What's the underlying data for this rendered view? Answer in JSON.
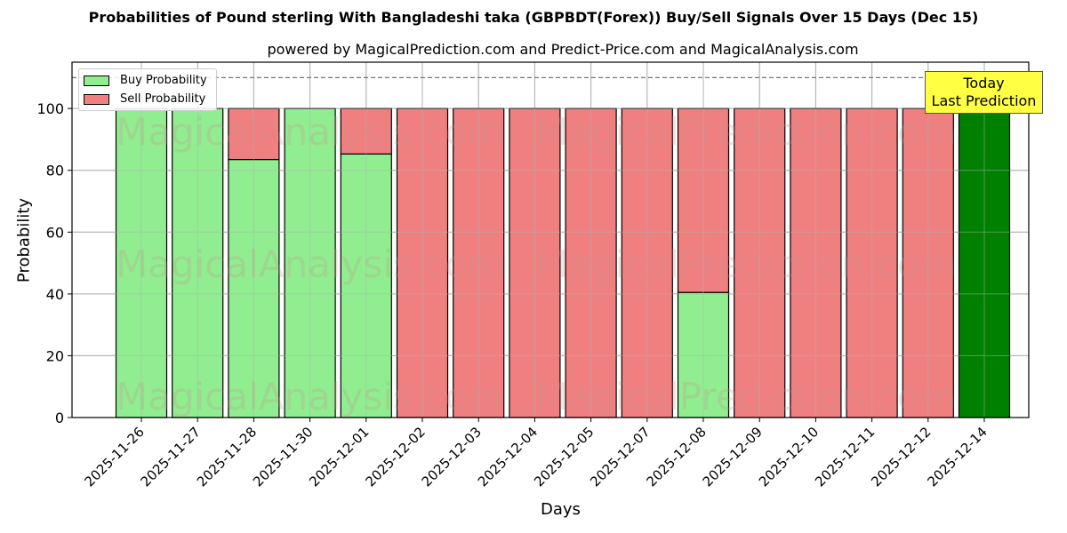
{
  "header": {
    "title": "Probabilities of Pound sterling With Bangladeshi taka (GBPBDT(Forex)) Buy/Sell Signals Over 15 Days (Dec 15)",
    "subtitle": "powered by MagicalPrediction.com and Predict-Price.com and MagicalAnalysis.com"
  },
  "axes": {
    "xlabel": "Days",
    "ylabel": "Probability",
    "yticks": [
      "0",
      "20",
      "40",
      "60",
      "80",
      "100"
    ]
  },
  "legend": {
    "buy": "Buy Probability",
    "sell": "Sell Probability"
  },
  "annotation": {
    "line1": "Today",
    "line2": "Last Prediction"
  },
  "watermarks": [
    "MagicalAnalysis.com",
    "MagicalPrediction.com"
  ],
  "colors": {
    "buy": "#90ee90",
    "sell": "#f08080",
    "today": "#008000",
    "annotation_bg": "#ffff44"
  },
  "chart_data": {
    "type": "bar",
    "stacked": true,
    "title": "Probabilities of Pound sterling With Bangladeshi taka (GBPBDT(Forex)) Buy/Sell Signals Over 15 Days (Dec 15)",
    "subtitle": "powered by MagicalPrediction.com and Predict-Price.com and MagicalAnalysis.com",
    "xlabel": "Days",
    "ylabel": "Probability",
    "ylim": [
      0,
      115
    ],
    "yticks": [
      0,
      20,
      40,
      60,
      80,
      100
    ],
    "grid": true,
    "legend_position": "upper left",
    "reference_line": {
      "y": 110,
      "style": "dashed"
    },
    "categories": [
      "2025-11-26",
      "2025-11-27",
      "2025-11-28",
      "2025-11-30",
      "2025-12-01",
      "2025-12-02",
      "2025-12-03",
      "2025-12-04",
      "2025-12-05",
      "2025-12-07",
      "2025-12-08",
      "2025-12-09",
      "2025-12-10",
      "2025-12-11",
      "2025-12-12",
      "2025-12-14"
    ],
    "series": [
      {
        "name": "Buy Probability",
        "values": [
          100,
          100,
          83.5,
          100,
          85.3,
          0,
          0,
          0,
          0,
          0,
          40.5,
          0,
          0,
          0,
          0,
          100
        ]
      },
      {
        "name": "Sell Probability",
        "values": [
          0,
          0,
          16.5,
          0,
          14.7,
          100,
          100,
          100,
          100,
          100,
          59.5,
          100,
          100,
          100,
          100,
          0
        ]
      }
    ],
    "annotations": [
      {
        "text": "Today\nLast Prediction",
        "x": "2025-12-14"
      }
    ]
  }
}
